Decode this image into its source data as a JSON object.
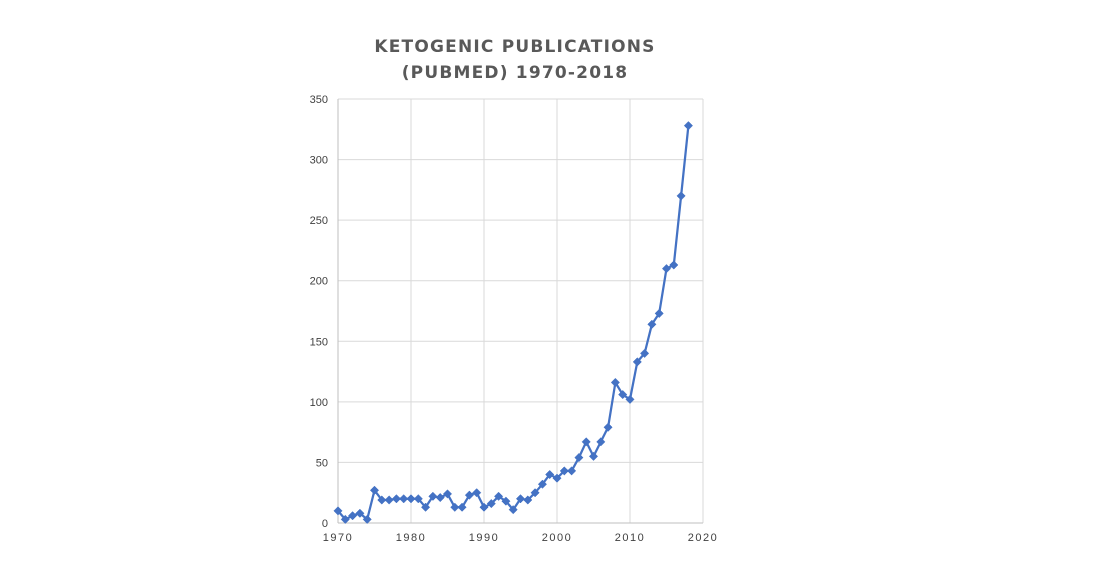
{
  "chart_data": {
    "type": "line",
    "title_lines": [
      "KETOGENIC PUBLICATIONS",
      "(PUBMED) 1970-2018"
    ],
    "xlabel": "",
    "ylabel": "",
    "xlim": [
      1970,
      2020
    ],
    "ylim": [
      0,
      350
    ],
    "x_ticks": [
      1970,
      1980,
      1990,
      2000,
      2010,
      2020
    ],
    "y_ticks": [
      0,
      50,
      100,
      150,
      200,
      250,
      300,
      350
    ],
    "grid": true,
    "legend": "none",
    "marker": "diamond",
    "series": [
      {
        "color": "#4472C4",
        "x": [
          1970,
          1971,
          1972,
          1973,
          1974,
          1975,
          1976,
          1977,
          1978,
          1979,
          1980,
          1981,
          1982,
          1983,
          1984,
          1985,
          1986,
          1987,
          1988,
          1989,
          1990,
          1991,
          1992,
          1993,
          1994,
          1995,
          1996,
          1997,
          1998,
          1999,
          2000,
          2001,
          2002,
          2003,
          2004,
          2005,
          2006,
          2007,
          2008,
          2009,
          2010,
          2011,
          2012,
          2013,
          2014,
          2015,
          2016,
          2017,
          2018
        ],
        "y": [
          10,
          3,
          6,
          8,
          3,
          27,
          19,
          19,
          20,
          20,
          20,
          20,
          13,
          22,
          21,
          24,
          13,
          13,
          23,
          25,
          13,
          16,
          22,
          18,
          11,
          20,
          19,
          25,
          32,
          40,
          37,
          43,
          43,
          54,
          67,
          55,
          67,
          79,
          116,
          106,
          102,
          133,
          140,
          164,
          173,
          210,
          213,
          270,
          328
        ]
      }
    ]
  }
}
